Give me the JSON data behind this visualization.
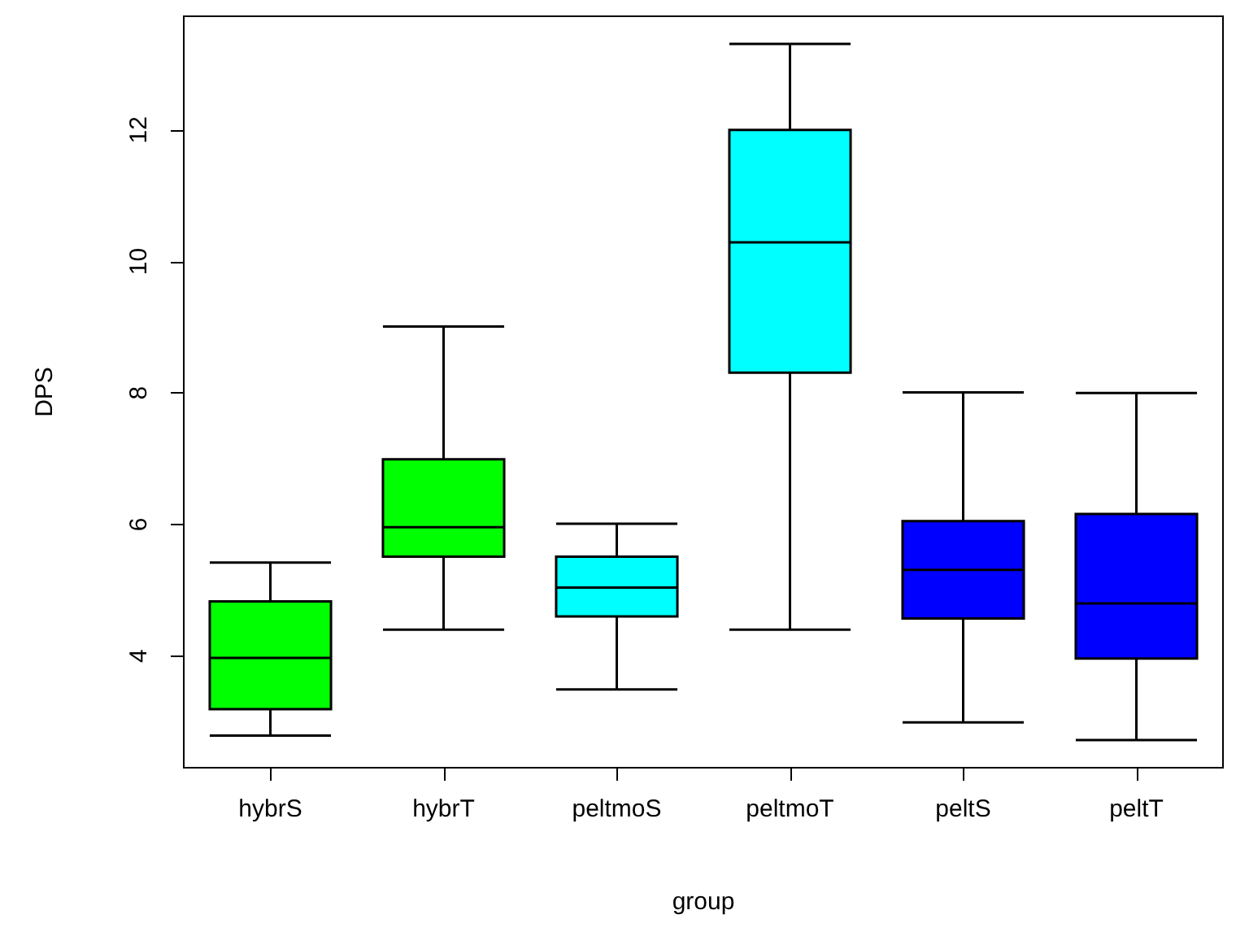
{
  "chart_data": {
    "type": "box",
    "xlabel": "group",
    "ylabel": "DPS",
    "categories": [
      "hybrS",
      "hybrT",
      "peltmoS",
      "peltmoT",
      "peltS",
      "peltT"
    ],
    "colors": [
      "#00ff00",
      "#00ff00",
      "#00ffff",
      "#00ffff",
      "#0000ff",
      "#0000ff"
    ],
    "boxes": [
      {
        "low": 2.79,
        "q1": 3.19,
        "median": 3.97,
        "q3": 4.83,
        "high": 5.42
      },
      {
        "low": 4.4,
        "q1": 5.51,
        "median": 5.96,
        "q3": 6.99,
        "high": 9.01
      },
      {
        "low": 3.49,
        "q1": 4.6,
        "median": 5.04,
        "q3": 5.51,
        "high": 6.01
      },
      {
        "low": 4.4,
        "q1": 8.31,
        "median": 10.29,
        "q3": 12.0,
        "high": 13.31
      },
      {
        "low": 2.99,
        "q1": 4.57,
        "median": 5.31,
        "q3": 6.05,
        "high": 8.01
      },
      {
        "low": 2.72,
        "q1": 3.96,
        "median": 4.8,
        "q3": 6.16,
        "high": 8.0
      }
    ],
    "ylim": [
      2.3,
      13.73
    ],
    "yticks": [
      4,
      6,
      8,
      10,
      12
    ],
    "grid": false
  }
}
